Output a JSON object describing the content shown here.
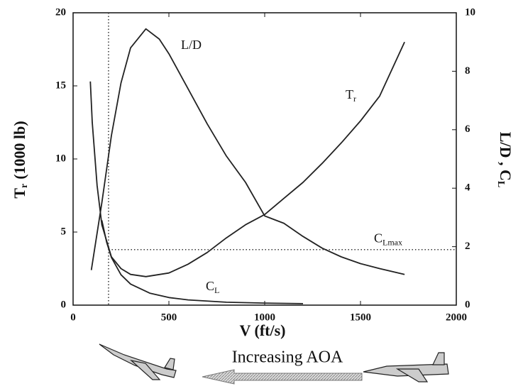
{
  "chart_data": {
    "type": "line",
    "x_label": "V   (ft/s)",
    "y_label": {
      "text": "T",
      "sub": "r",
      "unit": "(1000 lb)"
    },
    "y2_label": {
      "text": "L/D , C",
      "sub": "L"
    },
    "xlim": [
      0,
      2000
    ],
    "xticks": [
      0,
      500,
      1000,
      1500,
      2000
    ],
    "ylim": [
      0,
      20
    ],
    "yticks": [
      0,
      5,
      10,
      15,
      20
    ],
    "y2lim": [
      0,
      10
    ],
    "y2ticks": [
      0,
      2,
      4,
      6,
      8,
      10
    ],
    "color": "#222",
    "series": [
      {
        "name": "L/D",
        "axis": "y2",
        "x": [
          95,
          150,
          200,
          250,
          300,
          380,
          450,
          500,
          600,
          700,
          800,
          900,
          1000,
          1100,
          1200,
          1300,
          1400,
          1500,
          1600,
          1730
        ],
        "values": [
          1.2,
          3.5,
          5.8,
          7.6,
          8.8,
          9.45,
          9.1,
          8.6,
          7.4,
          6.2,
          5.1,
          4.2,
          3.05,
          2.8,
          2.35,
          1.95,
          1.65,
          1.42,
          1.25,
          1.05
        ]
      },
      {
        "name": "T",
        "sub": "r",
        "x": [
          90,
          100,
          125,
          150,
          200,
          250,
          300,
          380,
          500,
          600,
          700,
          800,
          900,
          1000,
          1100,
          1200,
          1300,
          1400,
          1500,
          1600,
          1730
        ],
        "values": [
          15.3,
          12.5,
          8.2,
          5.5,
          3.3,
          2.5,
          2.1,
          1.95,
          2.2,
          2.8,
          3.6,
          4.6,
          5.5,
          6.2,
          7.3,
          8.4,
          9.7,
          11.1,
          12.6,
          14.3,
          18
        ]
      },
      {
        "name": "C",
        "sub": "L",
        "axis": "y2",
        "x": [
          150,
          175,
          200,
          250,
          300,
          400,
          500,
          600,
          800,
          1000,
          1200
        ],
        "values": [
          2.9,
          2.15,
          1.63,
          1.04,
          0.72,
          0.41,
          0.26,
          0.18,
          0.1,
          0.07,
          0.05
        ]
      }
    ],
    "cl_max": {
      "v": 185,
      "value": 1.9,
      "label": "C",
      "sub": "Lmax"
    },
    "annotation": "Increasing AOA"
  }
}
